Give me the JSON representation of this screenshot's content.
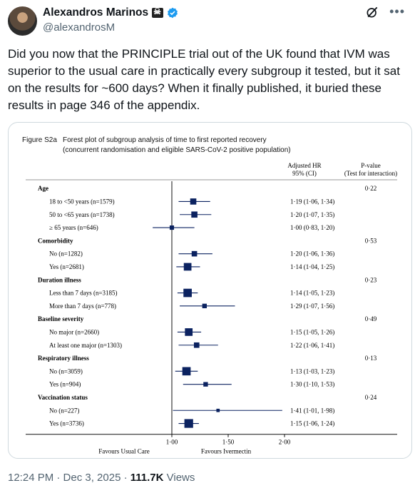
{
  "author": {
    "name": "Alexandros Marinos",
    "handle": "@alexandrosM"
  },
  "icons": {
    "badge": "pirate-flag-icon",
    "verified": "verified-badge-icon",
    "grok": "grok-icon",
    "more": "more-icon"
  },
  "tweet_text": "Did you now that the PRINCIPLE trial out of the UK found that IVM was superior to the usual care in practically every subgroup it tested, but it sat on the results for ~600 days? When it finally published, it buried these results in page 346 of the appendix.",
  "footer": {
    "time": "12:24 PM · Dec 3, 2025 · ",
    "views": "111.7K",
    "views_label": " Views"
  },
  "chart_data": {
    "type": "forest",
    "figure_label": "Figure S2a",
    "title": "Forest plot of subgroup analysis of time to first reported recovery (concurrent randomisation and eligible SARS-CoV-2 positive population)",
    "col_hr_header": [
      "Adjusted HR",
      "95% (CI)"
    ],
    "col_p_header": [
      "P-value",
      "(Test for interaction)"
    ],
    "xticks": [
      "1·00",
      "1·50",
      "2·00"
    ],
    "xtick_values": [
      1.0,
      1.5,
      2.0
    ],
    "xlim": [
      0.5,
      2.1
    ],
    "left_label": "Favours Usual Care",
    "right_label": "Favours Ivermectin",
    "rows": [
      {
        "kind": "group",
        "label": "Age",
        "p": "0·22"
      },
      {
        "kind": "item",
        "label": "18 to <50 years (n=1579)",
        "hr": 1.19,
        "lo": 1.06,
        "hi": 1.34,
        "text": "1·19 (1·06, 1·34)",
        "size": 0.4
      },
      {
        "kind": "item",
        "label": "50 to <65 years (n=1738)",
        "hr": 1.2,
        "lo": 1.07,
        "hi": 1.35,
        "text": "1·20 (1·07, 1·35)",
        "size": 0.4
      },
      {
        "kind": "item",
        "label": "≥ 65 years (n=646)",
        "hr": 1.0,
        "lo": 0.83,
        "hi": 1.2,
        "text": "1·00 (0·83, 1·20)",
        "size": 0.22
      },
      {
        "kind": "group",
        "label": "Comorbidity",
        "p": "0·53"
      },
      {
        "kind": "item",
        "label": "No (n=1282)",
        "hr": 1.2,
        "lo": 1.06,
        "hi": 1.36,
        "text": "1·20 (1·06, 1·36)",
        "size": 0.33
      },
      {
        "kind": "item",
        "label": "Yes (n=2681)",
        "hr": 1.14,
        "lo": 1.04,
        "hi": 1.25,
        "text": "1·14 (1·04, 1·25)",
        "size": 0.55
      },
      {
        "kind": "group",
        "label": "Duration illness",
        "p": "0·23"
      },
      {
        "kind": "item",
        "label": "Less than 7 days (n=3185)",
        "hr": 1.14,
        "lo": 1.05,
        "hi": 1.23,
        "text": "1·14 (1·05, 1·23)",
        "size": 0.62
      },
      {
        "kind": "item",
        "label": "More than 7 days (n=778)",
        "hr": 1.29,
        "lo": 1.07,
        "hi": 1.56,
        "text": "1·29 (1·07, 1·56)",
        "size": 0.24
      },
      {
        "kind": "group",
        "label": "Baseline severity",
        "p": "0·49"
      },
      {
        "kind": "item",
        "label": "No major (n=2660)",
        "hr": 1.15,
        "lo": 1.05,
        "hi": 1.26,
        "text": "1·15 (1·05, 1·26)",
        "size": 0.55
      },
      {
        "kind": "item",
        "label": "At least one major (n=1303)",
        "hr": 1.22,
        "lo": 1.06,
        "hi": 1.41,
        "text": "1·22 (1·06, 1·41)",
        "size": 0.33
      },
      {
        "kind": "group",
        "label": "Respiratory illness",
        "p": "0·13"
      },
      {
        "kind": "item",
        "label": "No (n=3059)",
        "hr": 1.13,
        "lo": 1.03,
        "hi": 1.23,
        "text": "1·13 (1·03, 1·23)",
        "size": 0.62
      },
      {
        "kind": "item",
        "label": "Yes (n=904)",
        "hr": 1.3,
        "lo": 1.1,
        "hi": 1.53,
        "text": "1·30 (1·10, 1·53)",
        "size": 0.24
      },
      {
        "kind": "group",
        "label": "Vaccination status",
        "p": "0·24"
      },
      {
        "kind": "item",
        "label": "No (n=227)",
        "hr": 1.41,
        "lo": 1.01,
        "hi": 1.98,
        "text": "1·41 (1·01, 1·98)",
        "size": 0.12
      },
      {
        "kind": "item",
        "label": "Yes (n=3736)",
        "hr": 1.15,
        "lo": 1.06,
        "hi": 1.24,
        "text": "1·15 (1·06, 1·24)",
        "size": 0.66
      }
    ]
  }
}
